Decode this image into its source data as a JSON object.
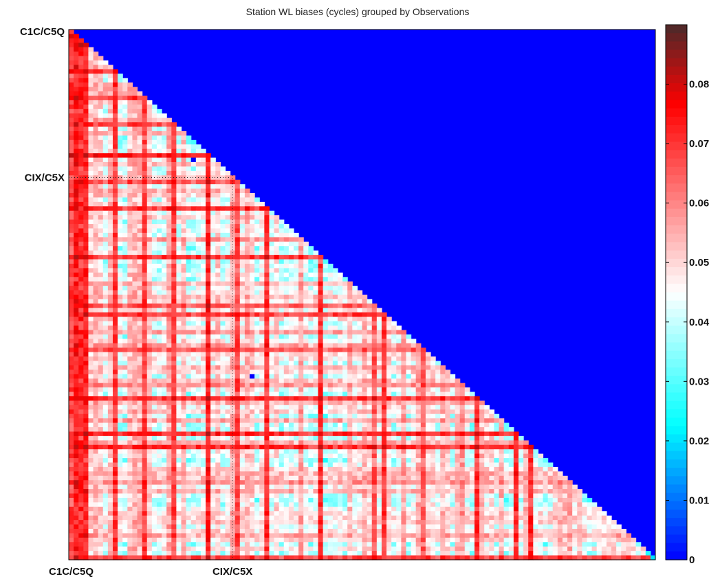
{
  "chart_data": {
    "type": "heatmap",
    "title": "Station WL biases (cycles) grouped by Observations",
    "matrix_size": 120,
    "triangle": "lower",
    "upper_fill_value": 0,
    "y_group_labels": [
      {
        "label": "C1C/C5Q",
        "index": 0
      },
      {
        "label": "CIX/C5X",
        "index": 33
      }
    ],
    "x_group_labels": [
      {
        "label": "C1C/C5Q",
        "index": 0
      },
      {
        "label": "CIX/C5X",
        "index": 33
      }
    ],
    "colorbar": {
      "min": 0,
      "max": 0.09,
      "ticks": [
        "0",
        "0.01",
        "0.02",
        "0.03",
        "0.04",
        "0.05",
        "0.06",
        "0.07",
        "0.08"
      ]
    },
    "colormap": [
      "#0000ff",
      "#00ffff",
      "#ffffff",
      "#ff0000",
      "#4a2a2a"
    ],
    "typical_value_range": [
      0.02,
      0.08
    ],
    "high_bias_stations": [
      1,
      2,
      3,
      4,
      10,
      16,
      22,
      29,
      35,
      41,
      52,
      63,
      65,
      73,
      84,
      92,
      95,
      120
    ],
    "low_bias_cells": [
      {
        "row": 29,
        "col": 25,
        "value": 0.0
      },
      {
        "row": 78,
        "col": 37,
        "value": 0.0
      }
    ],
    "grid": false
  }
}
